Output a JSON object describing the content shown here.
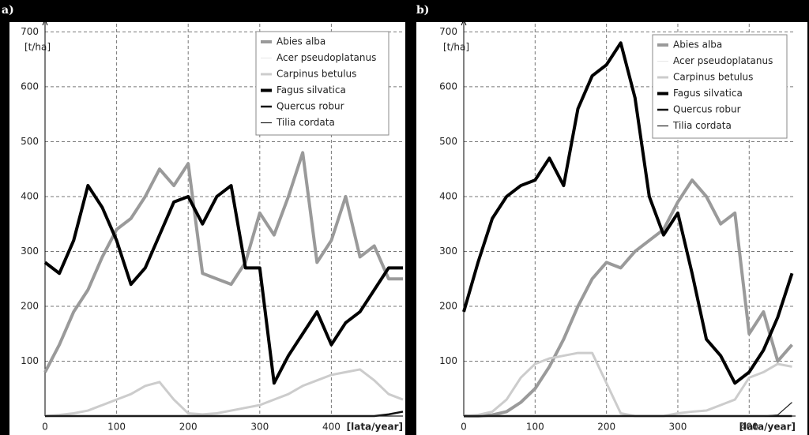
{
  "chart_data": [
    {
      "type": "line",
      "label": "a)",
      "y_label": "[t/ha]",
      "x_label": "[lata/year]",
      "x": [
        0,
        20,
        40,
        60,
        80,
        100,
        120,
        140,
        160,
        180,
        200,
        220,
        240,
        260,
        280,
        300,
        320,
        340,
        360,
        380,
        400,
        420,
        440,
        460,
        480,
        500
      ],
      "xlim": [
        0,
        500
      ],
      "ylim": [
        0,
        715
      ],
      "xticks": [
        0,
        100,
        200,
        300,
        400
      ],
      "yticks": [
        100,
        200,
        300,
        400,
        500,
        600,
        700
      ],
      "grid": true,
      "series": [
        {
          "name": "Abies alba",
          "color": "#9a9a9a",
          "values": [
            80,
            130,
            190,
            230,
            290,
            340,
            360,
            400,
            450,
            420,
            460,
            260,
            250,
            240,
            280,
            370,
            330,
            400,
            480,
            280,
            320,
            400,
            290,
            310,
            250,
            250
          ]
        },
        {
          "name": "Acer pseudoplatanus",
          "color": "#e6e6e6",
          "values": [
            0,
            0,
            0,
            0,
            0,
            0,
            0,
            0,
            0,
            0,
            0,
            0,
            0,
            0,
            0,
            0,
            0,
            0,
            0,
            0,
            0,
            0,
            0,
            0,
            0,
            0
          ]
        },
        {
          "name": "Carpinus betulus",
          "color": "#cccccc",
          "values": [
            0,
            2,
            5,
            10,
            20,
            30,
            40,
            55,
            62,
            30,
            5,
            3,
            5,
            10,
            15,
            20,
            30,
            40,
            55,
            65,
            75,
            80,
            85,
            65,
            40,
            30
          ]
        },
        {
          "name": "Fagus silvatica",
          "color": "#000000",
          "values": [
            280,
            260,
            320,
            420,
            380,
            320,
            240,
            270,
            330,
            390,
            400,
            350,
            400,
            420,
            270,
            270,
            60,
            110,
            150,
            190,
            130,
            170,
            190,
            230,
            270,
            270
          ]
        },
        {
          "name": "Quercus robur",
          "color": "#111111",
          "values": [
            0,
            0,
            0,
            0,
            0,
            0,
            0,
            0,
            0,
            0,
            0,
            0,
            0,
            0,
            0,
            0,
            0,
            0,
            0,
            0,
            0,
            0,
            0,
            0,
            3,
            8
          ]
        },
        {
          "name": "Tilia cordata",
          "color": "#222222",
          "values": [
            0,
            0,
            0,
            0,
            0,
            0,
            0,
            0,
            0,
            0,
            0,
            0,
            0,
            0,
            0,
            0,
            0,
            0,
            0,
            0,
            0,
            0,
            0,
            0,
            0,
            0
          ]
        }
      ]
    },
    {
      "type": "line",
      "label": "b)",
      "y_label": "[t/ha]",
      "x_label": "[lata/year]",
      "x": [
        0,
        20,
        40,
        60,
        80,
        100,
        120,
        140,
        160,
        180,
        200,
        220,
        240,
        260,
        280,
        300,
        320,
        340,
        360,
        380,
        400,
        420,
        440,
        460
      ],
      "xlim": [
        0,
        465
      ],
      "ylim": [
        0,
        715
      ],
      "xticks": [
        0,
        100,
        200,
        300,
        400
      ],
      "yticks": [
        100,
        200,
        300,
        400,
        500,
        600,
        700
      ],
      "grid": true,
      "series": [
        {
          "name": "Abies alba",
          "color": "#9a9a9a",
          "values": [
            0,
            0,
            2,
            8,
            25,
            50,
            90,
            140,
            200,
            250,
            280,
            270,
            300,
            320,
            340,
            390,
            430,
            400,
            350,
            370,
            150,
            190,
            100,
            130
          ]
        },
        {
          "name": "Acer pseudoplatanus",
          "color": "#e6e6e6",
          "values": [
            0,
            0,
            0,
            0,
            0,
            0,
            0,
            0,
            0,
            0,
            0,
            0,
            0,
            0,
            0,
            0,
            0,
            0,
            0,
            0,
            0,
            0,
            0,
            0
          ]
        },
        {
          "name": "Carpinus betulus",
          "color": "#cccccc",
          "values": [
            0,
            2,
            8,
            30,
            70,
            95,
            105,
            110,
            115,
            115,
            60,
            5,
            0,
            0,
            0,
            5,
            8,
            10,
            20,
            30,
            70,
            80,
            95,
            90
          ]
        },
        {
          "name": "Fagus silvatica",
          "color": "#000000",
          "values": [
            190,
            280,
            360,
            400,
            420,
            430,
            470,
            420,
            560,
            620,
            640,
            680,
            580,
            400,
            330,
            370,
            260,
            140,
            110,
            60,
            80,
            120,
            180,
            260
          ]
        },
        {
          "name": "Quercus robur",
          "color": "#111111",
          "values": [
            0,
            0,
            0,
            0,
            0,
            0,
            0,
            0,
            0,
            0,
            0,
            0,
            0,
            0,
            0,
            0,
            0,
            0,
            0,
            0,
            0,
            0,
            0,
            0
          ]
        },
        {
          "name": "Tilia cordata",
          "color": "#222222",
          "values": [
            0,
            0,
            0,
            0,
            0,
            0,
            0,
            0,
            0,
            0,
            0,
            0,
            0,
            0,
            0,
            0,
            0,
            0,
            0,
            0,
            0,
            0,
            2,
            25
          ]
        }
      ]
    }
  ]
}
